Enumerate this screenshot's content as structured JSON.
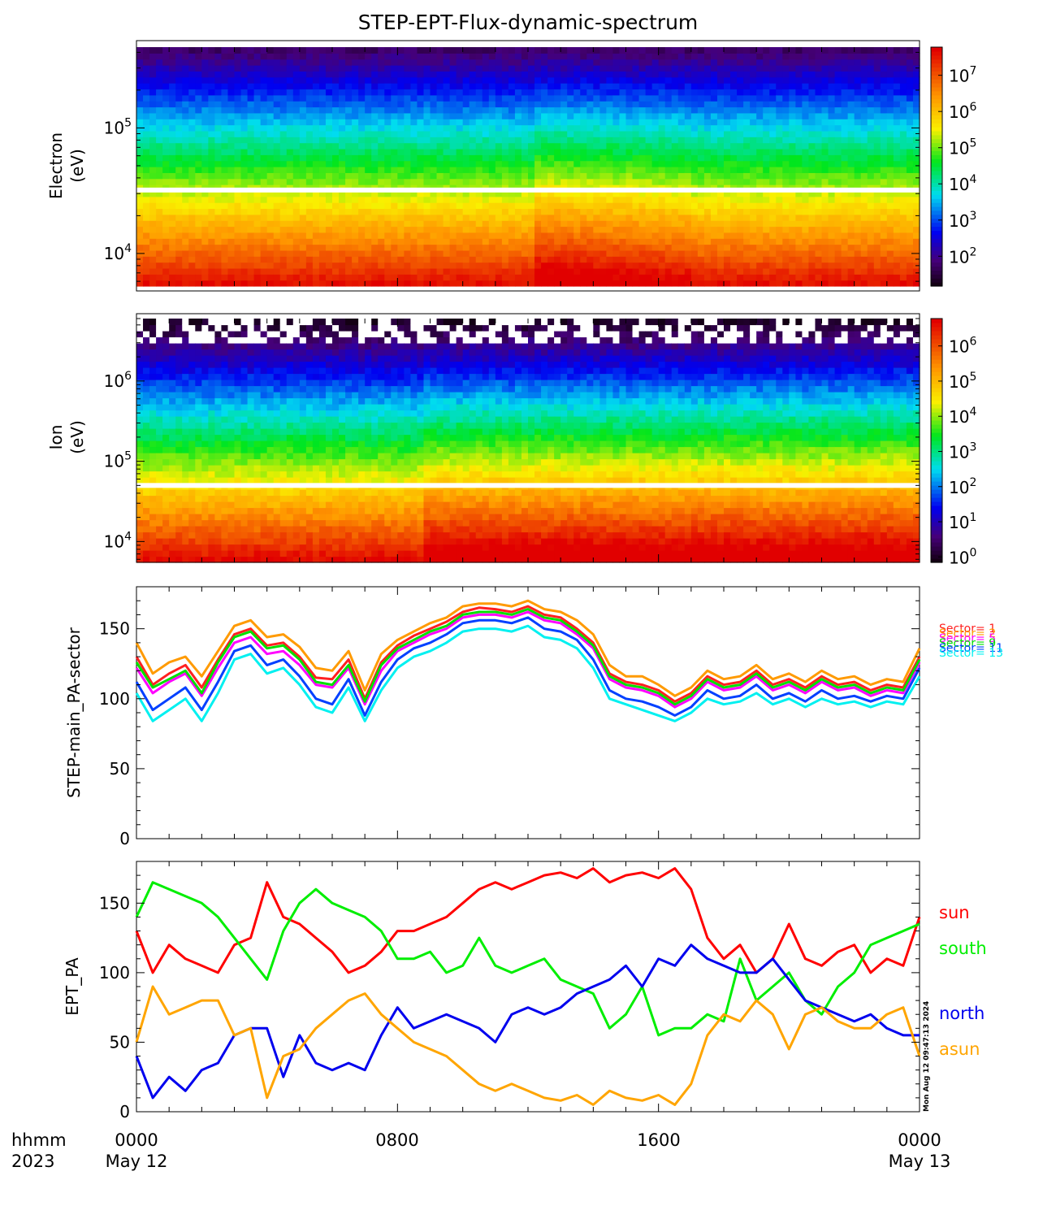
{
  "title": "STEP-EPT-Flux-dynamic-spectrum",
  "timestamp": "Mon Aug 12 09:47:13 2024",
  "x_axis": {
    "row1": [
      "hhmm",
      "0000",
      "0800",
      "1600",
      "0000"
    ],
    "row2": [
      "2023",
      "May 12",
      "May 13"
    ]
  },
  "chart_data": [
    {
      "type": "heatmap",
      "ylabel": [
        "Electron",
        "(eV)"
      ],
      "yscale": "log",
      "ylim": [
        5500,
        440000
      ],
      "yticks": [
        {
          "value": 10000,
          "base": "10",
          "exp": "4"
        },
        {
          "value": 100000,
          "base": "10",
          "exp": "5"
        }
      ],
      "colorbar": {
        "scale": "log",
        "range": [
          15,
          60000000
        ],
        "ticks": [
          {
            "base": "10",
            "exp": "2",
            "value": 100
          },
          {
            "base": "10",
            "exp": "3",
            "value": 1000
          },
          {
            "base": "10",
            "exp": "4",
            "value": 10000
          },
          {
            "base": "10",
            "exp": "5",
            "value": 100000
          },
          {
            "base": "10",
            "exp": "6",
            "value": 1000000
          },
          {
            "base": "10",
            "exp": "7",
            "value": 10000000
          }
        ]
      },
      "data_gap_energy": 32000
    },
    {
      "type": "heatmap",
      "ylabel": [
        "Ion",
        "(eV)"
      ],
      "yscale": "log",
      "ylim": [
        5500,
        6000000
      ],
      "yticks": [
        {
          "value": 10000,
          "base": "10",
          "exp": "4"
        },
        {
          "value": 100000,
          "base": "10",
          "exp": "5"
        },
        {
          "value": 1000000,
          "base": "10",
          "exp": "6"
        }
      ],
      "colorbar": {
        "scale": "log",
        "range": [
          0.7,
          6000000
        ],
        "ticks": [
          {
            "base": "10",
            "exp": "0",
            "value": 1
          },
          {
            "base": "10",
            "exp": "1",
            "value": 10
          },
          {
            "base": "10",
            "exp": "2",
            "value": 100
          },
          {
            "base": "10",
            "exp": "3",
            "value": 1000
          },
          {
            "base": "10",
            "exp": "4",
            "value": 10000
          },
          {
            "base": "10",
            "exp": "5",
            "value": 100000
          },
          {
            "base": "10",
            "exp": "6",
            "value": 1000000
          }
        ]
      },
      "data_gap_energy": 50000
    },
    {
      "type": "line",
      "ylabel": "STEP-main_PA-sector",
      "ylim": [
        0,
        180
      ],
      "yticks": [
        "0",
        "50",
        "100",
        "150"
      ],
      "x_hours": [
        0,
        0.5,
        1,
        1.5,
        2,
        2.5,
        3,
        3.5,
        4,
        4.5,
        5,
        5.5,
        6,
        6.5,
        7,
        7.5,
        8,
        8.5,
        9,
        9.5,
        10,
        10.5,
        11,
        11.5,
        12,
        12.5,
        13,
        13.5,
        14,
        14.5,
        15,
        15.5,
        16,
        16.5,
        17,
        17.5,
        18,
        18.5,
        19,
        19.5,
        20,
        20.5,
        21,
        21.5,
        22,
        22.5,
        23,
        23.5,
        24
      ],
      "series": [
        {
          "name": "Sector= 1",
          "color": "#ff2020",
          "values": [
            130,
            110,
            118,
            124,
            108,
            128,
            146,
            150,
            138,
            140,
            130,
            115,
            114,
            128,
            100,
            126,
            138,
            145,
            150,
            155,
            162,
            165,
            164,
            162,
            166,
            160,
            158,
            150,
            140,
            118,
            112,
            110,
            106,
            98,
            104,
            116,
            110,
            112,
            120,
            110,
            114,
            108,
            116,
            110,
            112,
            106,
            110,
            108,
            130
          ]
        },
        {
          "name": "Sector= 2",
          "color": "#ff9a00",
          "values": [
            140,
            118,
            126,
            130,
            116,
            134,
            152,
            156,
            144,
            146,
            137,
            122,
            120,
            134,
            106,
            132,
            142,
            148,
            154,
            158,
            166,
            168,
            168,
            166,
            170,
            164,
            162,
            156,
            146,
            124,
            116,
            116,
            110,
            102,
            108,
            120,
            114,
            116,
            124,
            114,
            118,
            112,
            120,
            114,
            116,
            110,
            114,
            112,
            136
          ]
        },
        {
          "name": "Sector= 5",
          "color": "#ff00ff",
          "values": [
            122,
            104,
            112,
            118,
            102,
            122,
            140,
            144,
            132,
            134,
            124,
            110,
            108,
            122,
            96,
            120,
            134,
            140,
            146,
            150,
            158,
            160,
            160,
            158,
            162,
            156,
            154,
            146,
            136,
            114,
            108,
            106,
            102,
            94,
            100,
            112,
            106,
            108,
            116,
            106,
            110,
            104,
            112,
            106,
            108,
            102,
            106,
            104,
            126
          ]
        },
        {
          "name": "Sector= 9",
          "color": "#00e000",
          "values": [
            126,
            108,
            114,
            120,
            104,
            126,
            144,
            148,
            136,
            138,
            128,
            112,
            110,
            124,
            98,
            124,
            136,
            142,
            148,
            152,
            160,
            162,
            162,
            160,
            164,
            158,
            156,
            148,
            138,
            116,
            110,
            108,
            104,
            96,
            102,
            114,
            108,
            110,
            118,
            108,
            112,
            106,
            114,
            108,
            110,
            104,
            108,
            106,
            128
          ]
        },
        {
          "name": "Sector= 11",
          "color": "#0040ff",
          "values": [
            112,
            92,
            100,
            108,
            92,
            112,
            134,
            138,
            124,
            128,
            116,
            100,
            96,
            114,
            88,
            112,
            128,
            136,
            140,
            146,
            154,
            156,
            156,
            154,
            158,
            150,
            148,
            142,
            128,
            106,
            100,
            98,
            94,
            88,
            94,
            106,
            100,
            102,
            110,
            100,
            104,
            98,
            106,
            100,
            102,
            98,
            102,
            100,
            122
          ]
        },
        {
          "name": "Sector= 13",
          "color": "#00f0f0",
          "values": [
            104,
            84,
            92,
            100,
            84,
            104,
            128,
            132,
            118,
            122,
            110,
            94,
            90,
            108,
            84,
            106,
            122,
            130,
            134,
            140,
            148,
            150,
            150,
            148,
            152,
            144,
            142,
            136,
            122,
            100,
            96,
            92,
            88,
            84,
            90,
            100,
            96,
            98,
            104,
            96,
            100,
            94,
            100,
            96,
            98,
            94,
            98,
            96,
            116
          ]
        }
      ]
    },
    {
      "type": "line",
      "ylabel": "EPT_PA",
      "ylim": [
        0,
        180
      ],
      "yticks": [
        "0",
        "50",
        "100",
        "150"
      ],
      "x_hours": [
        0,
        0.5,
        1,
        1.5,
        2,
        2.5,
        3,
        3.5,
        4,
        4.5,
        5,
        5.5,
        6,
        6.5,
        7,
        7.5,
        8,
        8.5,
        9,
        9.5,
        10,
        10.5,
        11,
        11.5,
        12,
        12.5,
        13,
        13.5,
        14,
        14.5,
        15,
        15.5,
        16,
        16.5,
        17,
        17.5,
        18,
        18.5,
        19,
        19.5,
        20,
        20.5,
        21,
        21.5,
        22,
        22.5,
        23,
        23.5,
        24
      ],
      "series": [
        {
          "name": "sun",
          "color": "#ff0000",
          "values": [
            130,
            100,
            120,
            110,
            105,
            100,
            120,
            125,
            165,
            140,
            135,
            125,
            115,
            100,
            105,
            115,
            130,
            130,
            135,
            140,
            150,
            160,
            165,
            160,
            165,
            170,
            172,
            168,
            175,
            165,
            170,
            172,
            168,
            175,
            160,
            125,
            110,
            120,
            100,
            110,
            135,
            110,
            105,
            115,
            120,
            100,
            110,
            105,
            140
          ]
        },
        {
          "name": "south",
          "color": "#00ee00",
          "values": [
            140,
            165,
            160,
            155,
            150,
            140,
            125,
            110,
            95,
            130,
            150,
            160,
            150,
            145,
            140,
            130,
            110,
            110,
            115,
            100,
            105,
            125,
            105,
            100,
            105,
            110,
            95,
            90,
            85,
            60,
            70,
            90,
            55,
            60,
            60,
            70,
            65,
            110,
            80,
            90,
            100,
            80,
            70,
            90,
            100,
            120,
            125,
            130,
            135
          ]
        },
        {
          "name": "north",
          "color": "#0000ee",
          "values": [
            40,
            10,
            25,
            15,
            30,
            35,
            55,
            60,
            60,
            25,
            55,
            35,
            30,
            35,
            30,
            55,
            75,
            60,
            65,
            70,
            65,
            60,
            50,
            70,
            75,
            70,
            75,
            85,
            90,
            95,
            105,
            90,
            110,
            105,
            120,
            110,
            105,
            100,
            100,
            110,
            95,
            80,
            75,
            70,
            65,
            70,
            60,
            55,
            55
          ]
        },
        {
          "name": "asun",
          "color": "#ffa500",
          "values": [
            50,
            90,
            70,
            75,
            80,
            80,
            55,
            60,
            10,
            40,
            45,
            60,
            70,
            80,
            85,
            70,
            60,
            50,
            45,
            40,
            30,
            20,
            15,
            20,
            15,
            10,
            8,
            12,
            5,
            15,
            10,
            8,
            12,
            5,
            20,
            55,
            70,
            65,
            80,
            70,
            45,
            70,
            75,
            65,
            60,
            60,
            70,
            75,
            40
          ]
        }
      ]
    }
  ]
}
